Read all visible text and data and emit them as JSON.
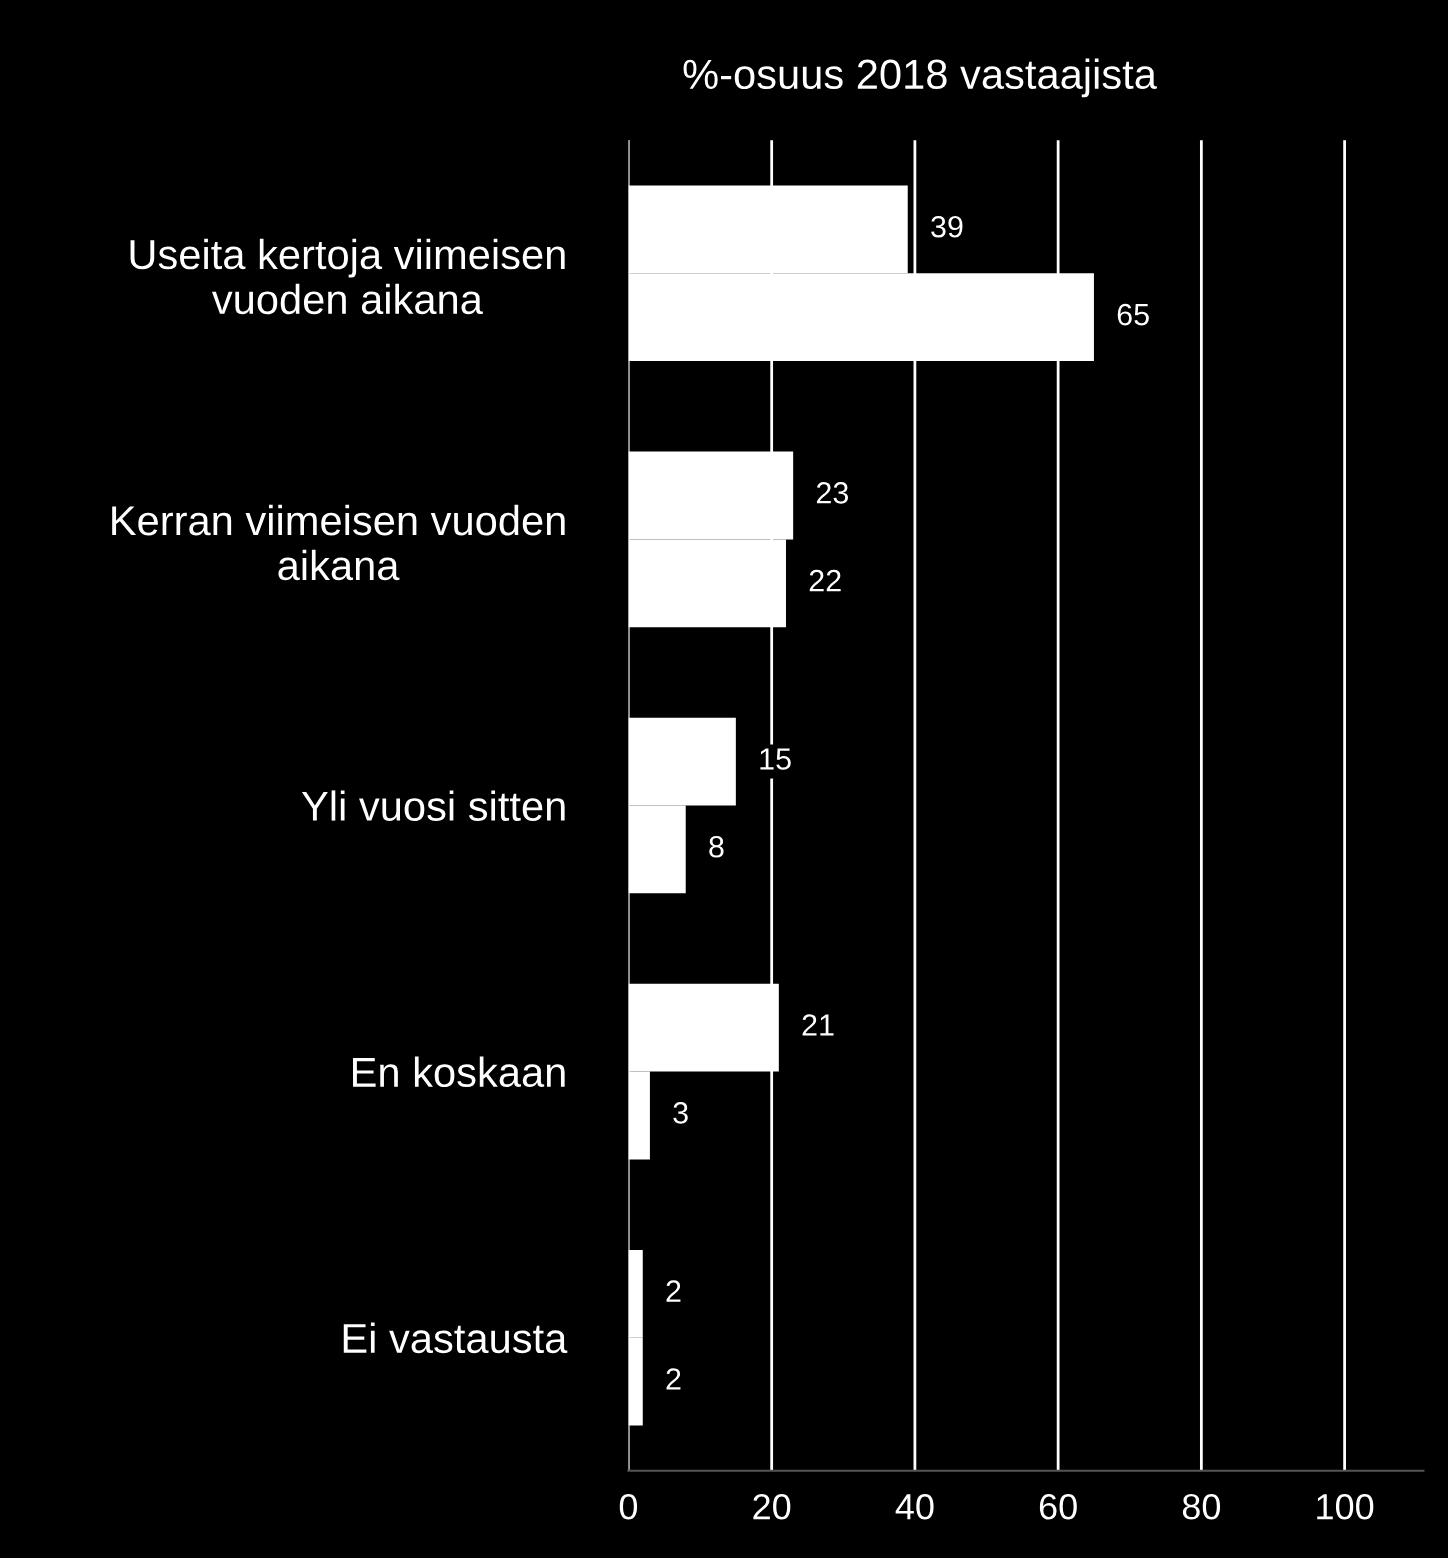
{
  "chart_data": {
    "type": "bar",
    "orientation": "horizontal",
    "title": "%-osuus 2018 vastaajista",
    "categories": [
      "Useita kertoja viimeisen\nvuoden aikana",
      "Kerran viimeisen vuoden\naikana",
      "Yli vuosi sitten",
      "En koskaan",
      "Ei vastausta"
    ],
    "series": [
      {
        "color": "#ffffff",
        "values": [
          39,
          23,
          15,
          21,
          2
        ]
      },
      {
        "color": "#ffffff",
        "values": [
          65,
          22,
          8,
          3,
          2
        ]
      }
    ],
    "xlim": [
      0,
      111
    ],
    "xticks": [
      0,
      20,
      40,
      60,
      80,
      100
    ],
    "grid": "x",
    "data_labels": true
  }
}
